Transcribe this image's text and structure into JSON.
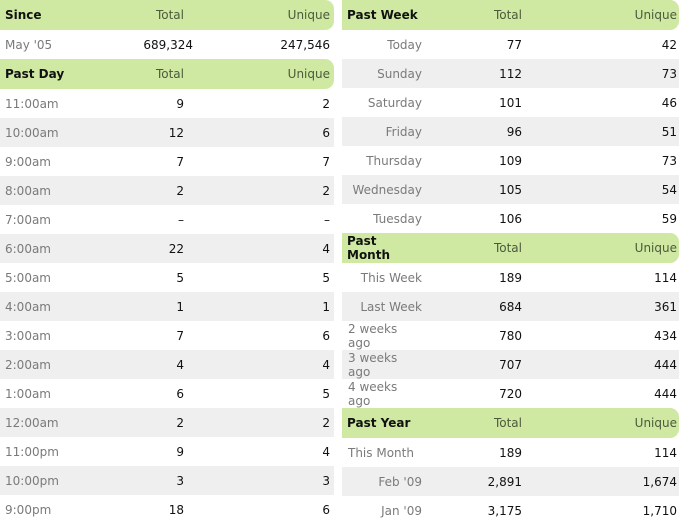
{
  "since": {
    "label": "Since",
    "total_h": "Total",
    "unique_h": "Unique",
    "row": {
      "label": "May '05",
      "total": "689,324",
      "unique": "247,546"
    }
  },
  "past_day": {
    "label": "Past Day",
    "total_h": "Total",
    "unique_h": "Unique",
    "rows": [
      {
        "label": "11:00am",
        "total": "9",
        "unique": "2"
      },
      {
        "label": "10:00am",
        "total": "12",
        "unique": "6"
      },
      {
        "label": "9:00am",
        "total": "7",
        "unique": "7"
      },
      {
        "label": "8:00am",
        "total": "2",
        "unique": "2"
      },
      {
        "label": "7:00am",
        "total": "–",
        "unique": "–"
      },
      {
        "label": "6:00am",
        "total": "22",
        "unique": "4"
      },
      {
        "label": "5:00am",
        "total": "5",
        "unique": "5"
      },
      {
        "label": "4:00am",
        "total": "1",
        "unique": "1"
      },
      {
        "label": "3:00am",
        "total": "7",
        "unique": "6"
      },
      {
        "label": "2:00am",
        "total": "4",
        "unique": "4"
      },
      {
        "label": "1:00am",
        "total": "6",
        "unique": "5"
      },
      {
        "label": "12:00am",
        "total": "2",
        "unique": "2"
      },
      {
        "label": "11:00pm",
        "total": "9",
        "unique": "4"
      },
      {
        "label": "10:00pm",
        "total": "3",
        "unique": "3"
      },
      {
        "label": "9:00pm",
        "total": "18",
        "unique": "6"
      }
    ]
  },
  "past_week": {
    "label": "Past Week",
    "total_h": "Total",
    "unique_h": "Unique",
    "rows": [
      {
        "label": "Today",
        "total": "77",
        "unique": "42"
      },
      {
        "label": "Sunday",
        "total": "112",
        "unique": "73"
      },
      {
        "label": "Saturday",
        "total": "101",
        "unique": "46"
      },
      {
        "label": "Friday",
        "total": "96",
        "unique": "51"
      },
      {
        "label": "Thursday",
        "total": "109",
        "unique": "73"
      },
      {
        "label": "Wednesday",
        "total": "105",
        "unique": "54"
      },
      {
        "label": "Tuesday",
        "total": "106",
        "unique": "59"
      }
    ]
  },
  "past_month": {
    "label": "Past Month",
    "total_h": "Total",
    "unique_h": "Unique",
    "rows": [
      {
        "label": "This Week",
        "total": "189",
        "unique": "114"
      },
      {
        "label": "Last Week",
        "total": "684",
        "unique": "361"
      },
      {
        "label": "2 weeks ago",
        "total": "780",
        "unique": "434"
      },
      {
        "label": "3 weeks ago",
        "total": "707",
        "unique": "444"
      },
      {
        "label": "4 weeks ago",
        "total": "720",
        "unique": "444"
      }
    ]
  },
  "past_year": {
    "label": "Past Year",
    "total_h": "Total",
    "unique_h": "Unique",
    "rows": [
      {
        "label": "This Month",
        "total": "189",
        "unique": "114"
      },
      {
        "label": "Feb '09",
        "total": "2,891",
        "unique": "1,674"
      },
      {
        "label": "Jan '09",
        "total": "3,175",
        "unique": "1,710"
      }
    ]
  },
  "colors": {
    "header_bg": "#cfe9a3",
    "stripe_bg": "#efefef",
    "label_text": "#7a7a7a"
  }
}
